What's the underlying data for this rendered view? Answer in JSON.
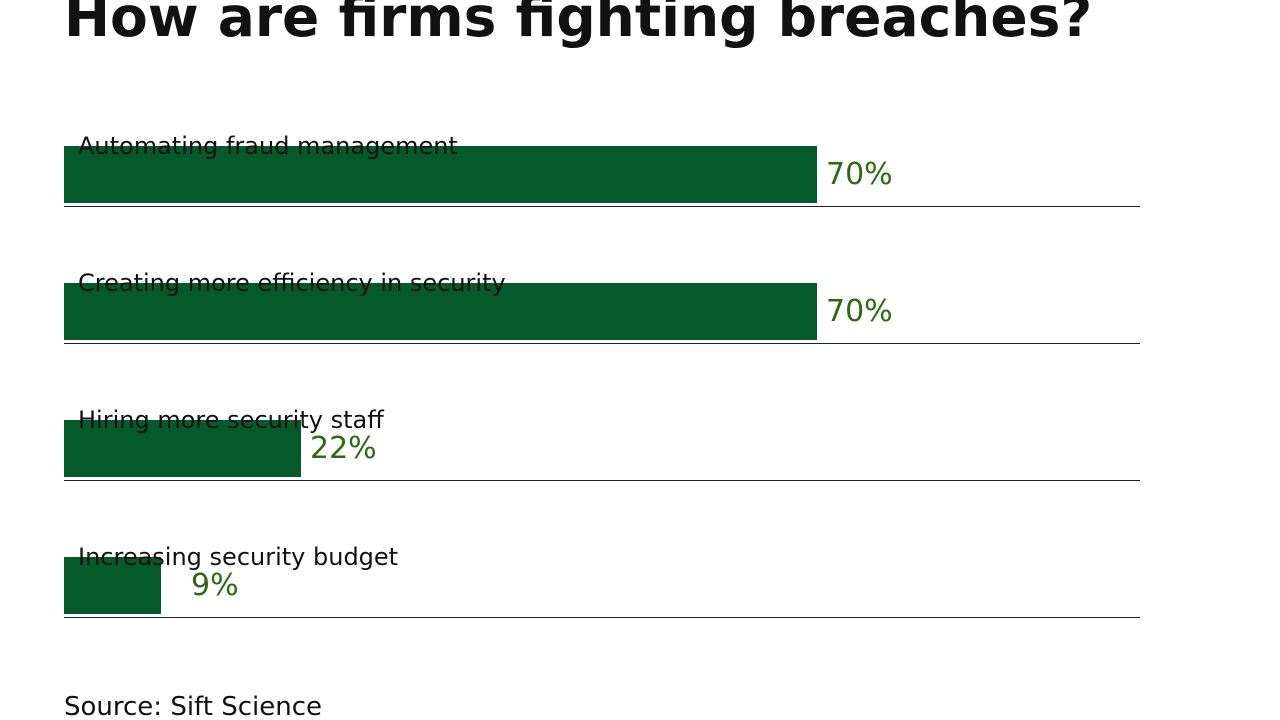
{
  "title": "How are firms fighting breaches?",
  "source": "Source: Sift Science",
  "colors": {
    "bar": "#045a2a",
    "value_text": "#2f6a12",
    "text": "#111111",
    "rule": "#222222"
  },
  "chart_data": {
    "type": "bar",
    "orientation": "horizontal",
    "title": "How are firms fighting breaches?",
    "categories": [
      "Automating fraud management",
      "Creating more efficiency in security",
      "Hiring more security staff",
      "Increasing security budget"
    ],
    "values": [
      70,
      70,
      22,
      9
    ],
    "value_labels": [
      "70%",
      "70%",
      "22%",
      "9%"
    ],
    "unit": "%",
    "xlim": [
      0,
      100
    ],
    "grid": false,
    "legend": "none"
  }
}
